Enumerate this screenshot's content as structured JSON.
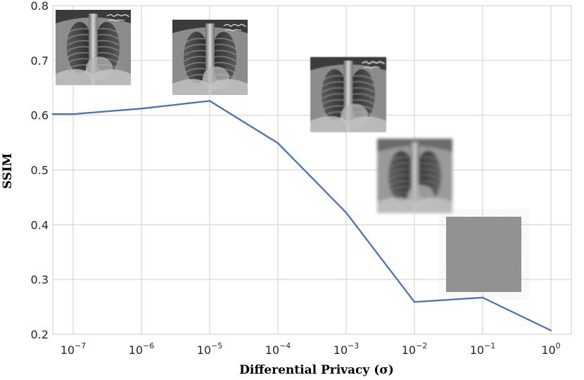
{
  "chart_data": {
    "type": "line",
    "title": "",
    "xlabel": "Differential Privacy (σ)",
    "ylabel": "SSIM",
    "xscale": "log",
    "ylim": [
      0.2,
      0.8
    ],
    "grid": true,
    "legend": "none",
    "y_ticks": [
      "0.2",
      "0.3",
      "0.4",
      "0.5",
      "0.6",
      "0.7",
      "0.8"
    ],
    "x_ticks": [
      {
        "base": "10",
        "exp": "−7"
      },
      {
        "base": "10",
        "exp": "−6"
      },
      {
        "base": "10",
        "exp": "−5"
      },
      {
        "base": "10",
        "exp": "−4"
      },
      {
        "base": "10",
        "exp": "−3"
      },
      {
        "base": "10",
        "exp": "−2"
      },
      {
        "base": "10",
        "exp": "−1"
      },
      {
        "base": "10",
        "exp": "0"
      }
    ],
    "series": [
      {
        "name": "SSIM",
        "color": "#4c72b0",
        "x_log10": [
          -7.3,
          -7.0,
          -6.0,
          -5.0,
          -4.0,
          -3.0,
          -2.0,
          -1.0,
          0.0
        ],
        "values": [
          0.602,
          0.602,
          0.612,
          0.626,
          0.549,
          0.422,
          0.259,
          0.267,
          0.207
        ]
      }
    ],
    "thumbnails": [
      {
        "name": "xray-thumbnail-sigma-1e-7",
        "sigma_log10": -7,
        "kind": "clear chest x-ray"
      },
      {
        "name": "xray-thumbnail-sigma-1e-5",
        "sigma_log10": -5,
        "kind": "clear chest x-ray"
      },
      {
        "name": "xray-thumbnail-sigma-1e-3",
        "sigma_log10": -3,
        "kind": "slightly noisy chest x-ray"
      },
      {
        "name": "xray-thumbnail-sigma-1e-2",
        "sigma_log10": -2,
        "kind": "heavily degraded chest x-ray"
      },
      {
        "name": "xray-thumbnail-sigma-1e-1",
        "sigma_log10": -1,
        "kind": "pure gray noise"
      }
    ]
  }
}
